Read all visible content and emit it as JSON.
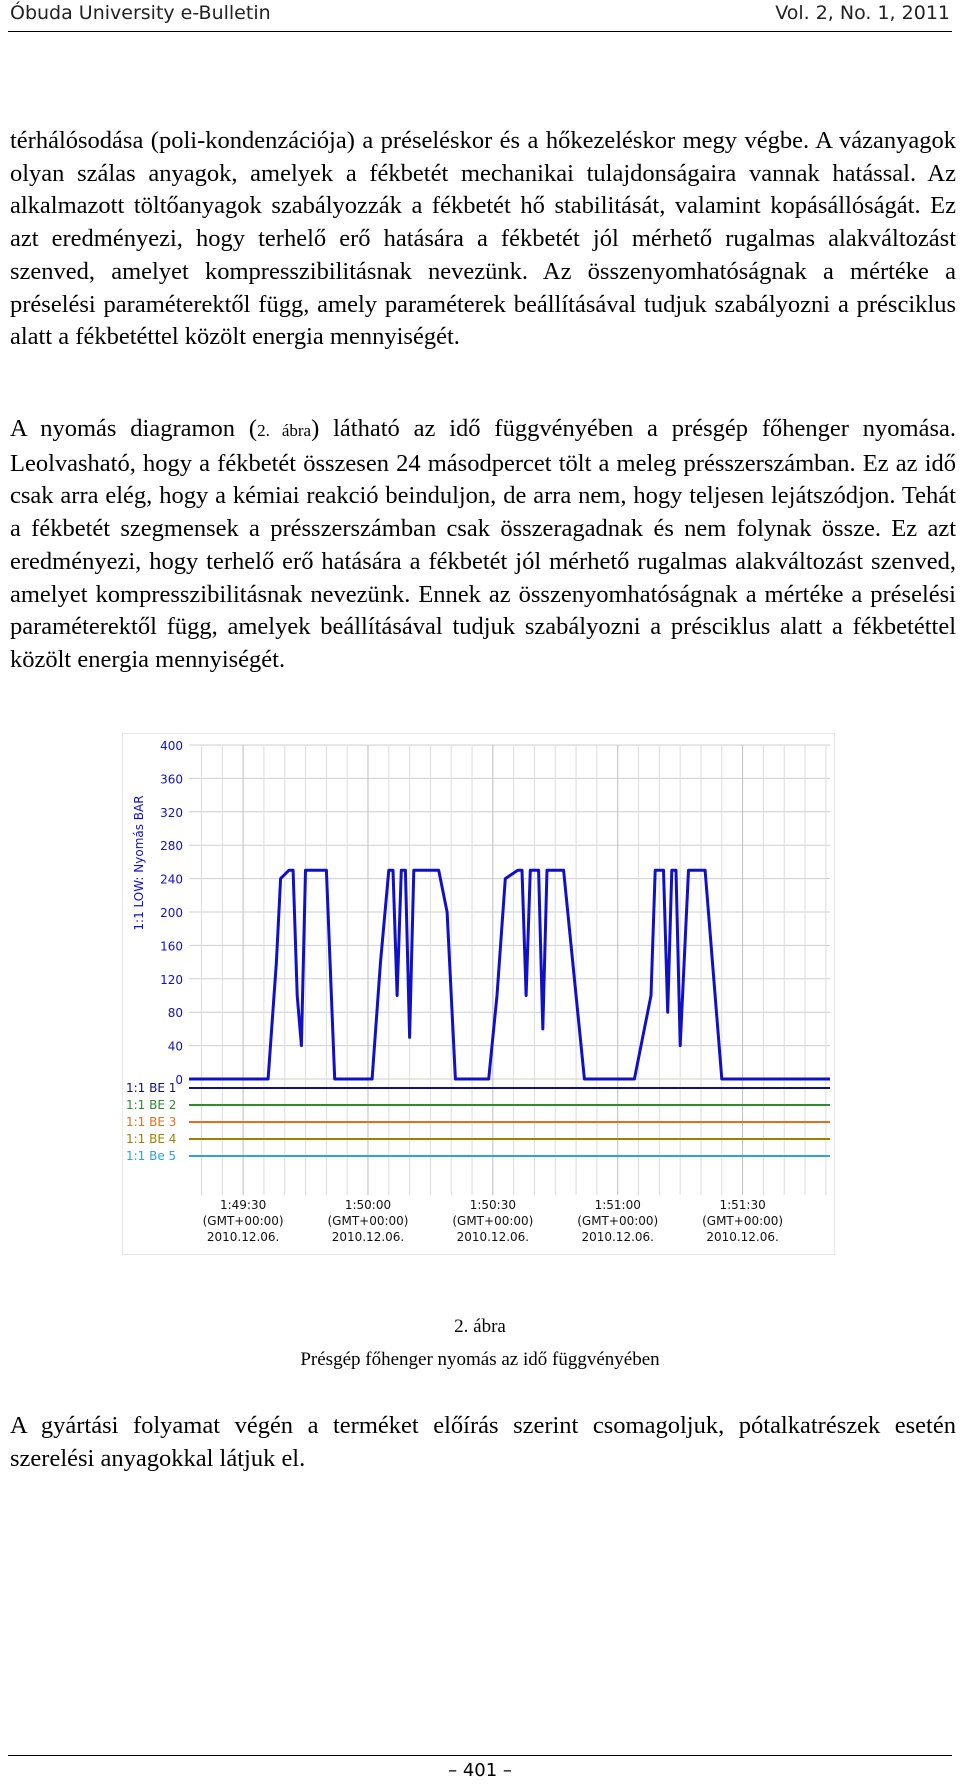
{
  "header": {
    "journal": "Óbuda University e-Bulletin",
    "volume": "Vol. 2, No. 1, 2011"
  },
  "paragraphs": {
    "p1": "térhálósodása (poli-kondenzációja) a préseléskor és a hőkezeléskor megy végbe. A vázanyagok olyan szálas anyagok, amelyek a fékbetét mechanikai tulajdonságaira vannak hatással. Az alkalmazott töltőanyagok szabályozzák a fékbetét hő stabilitását, valamint kopásállóságát. Ez azt eredményezi, hogy terhelő erő hatására a fékbetét jól mérhető rugalmas alakváltozást szenved, amelyet kompresszibilitásnak nevezünk. Az összenyomhatóságnak a mértéke a préselési paraméterektől függ, amely paraméterek beállításával tudjuk szabályozni a présciklus alatt a fékbetéttel közölt energia mennyiségét.",
    "p2_before": "A nyomás diagramon (",
    "p2_ref": "2. ábra",
    "p2_after": ") látható az idő függvényében a présgép főhenger nyomása. Leolvasható, hogy a fékbetét összesen 24 másodpercet tölt a meleg présszerszámban. Ez az idő csak arra elég, hogy a kémiai reakció beinduljon, de arra nem, hogy teljesen lejátszódjon. Tehát a fékbetét szegmensek a présszerszámban csak összeragadnak és nem folynak össze. Ez azt eredményezi, hogy terhelő erő hatására a fékbetét jól mérhető rugalmas alakváltozást szenved, amelyet kompresszibilitásnak nevezünk. Ennek az összenyomhatóságnak a mértéke a préselési paraméterektől függ, amelyek beállításával tudjuk szabályozni a présciklus alatt a fékbetéttel közölt energia mennyiségét.",
    "p3": "A gyártási folyamat végén a terméket előírás szerint csomagoljuk, pótalkatrészek esetén szerelési anyagokkal látjuk el."
  },
  "figure": {
    "number": "2. ábra",
    "caption": "Présgép főhenger nyomás az idő függvényében"
  },
  "footer": {
    "page": "– 401 –"
  },
  "chart_data": {
    "type": "line",
    "ylabel": "1:1 LOW: Nyomás BAR",
    "ylim": [
      0,
      400
    ],
    "yticks": [
      "400",
      "360",
      "320",
      "280",
      "240",
      "200",
      "160",
      "120",
      "80",
      "40",
      "0"
    ],
    "xticks": [
      {
        "time": "1:49:30",
        "tz": "(GMT+00:00)",
        "date": "2010.12.06."
      },
      {
        "time": "1:50:00",
        "tz": "(GMT+00:00)",
        "date": "2010.12.06."
      },
      {
        "time": "1:50:30",
        "tz": "(GMT+00:00)",
        "date": "2010.12.06."
      },
      {
        "time": "1:51:00",
        "tz": "(GMT+00:00)",
        "date": "2010.12.06."
      },
      {
        "time": "1:51:30",
        "tz": "(GMT+00:00)",
        "date": "2010.12.06."
      }
    ],
    "xtick_seconds": [
      0,
      30,
      60,
      90,
      120
    ],
    "xlim_seconds": [
      -13,
      141
    ],
    "grid": true,
    "pressure_series": {
      "color": "#1010c8",
      "t": [
        -13,
        6,
        8,
        9,
        11,
        12,
        13,
        14,
        15,
        18,
        20,
        22,
        31,
        33,
        35,
        36,
        37,
        38,
        39,
        40,
        41,
        43,
        45,
        47,
        49,
        51,
        59,
        61,
        63,
        66,
        67,
        68,
        69,
        71,
        72,
        73,
        74,
        76,
        77,
        79,
        82,
        90,
        94,
        98,
        99,
        101,
        102,
        103,
        104,
        105,
        107,
        108,
        111,
        115,
        141
      ],
      "v": [
        0,
        0,
        140,
        240,
        250,
        250,
        100,
        40,
        250,
        250,
        250,
        0,
        0,
        140,
        250,
        250,
        100,
        250,
        250,
        50,
        250,
        250,
        250,
        250,
        200,
        0,
        0,
        100,
        240,
        250,
        250,
        100,
        250,
        250,
        60,
        250,
        250,
        250,
        250,
        150,
        0,
        0,
        0,
        100,
        250,
        250,
        80,
        250,
        250,
        40,
        250,
        250,
        250,
        0,
        0
      ]
    },
    "digital_channels": [
      {
        "name": "1:1 BE 1",
        "color": "#101080"
      },
      {
        "name": "1:1 BE 2",
        "color": "#2e8b2e"
      },
      {
        "name": "1:1 BE 3",
        "color": "#e07020"
      },
      {
        "name": "1:1 BE 4",
        "color": "#a08000"
      },
      {
        "name": "1:1 Be 5",
        "color": "#30a0e0"
      }
    ]
  }
}
